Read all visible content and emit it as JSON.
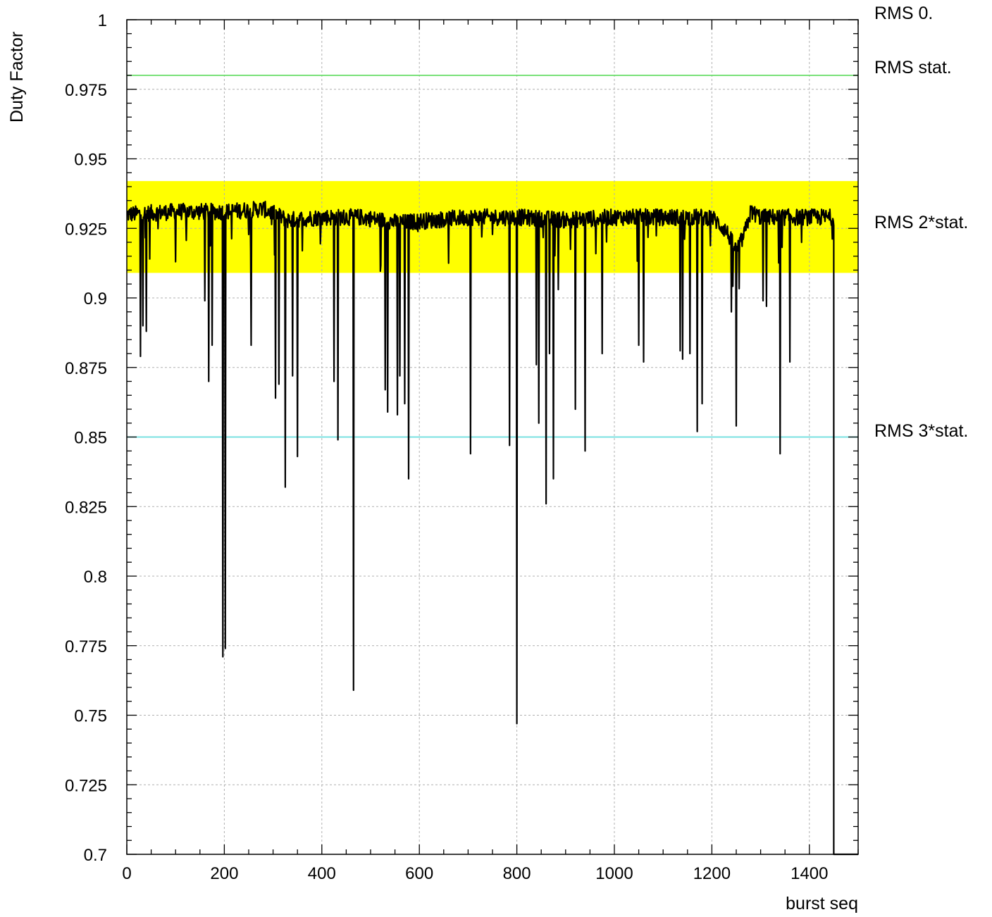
{
  "chart_data": {
    "type": "line",
    "xlabel": "burst seq",
    "ylabel": "Duty Factor",
    "xlim": [
      0,
      1500
    ],
    "ylim": [
      0.7,
      1.0
    ],
    "grid": true,
    "x_ticks": [
      0,
      200,
      400,
      600,
      800,
      1000,
      1200,
      1400
    ],
    "y_ticks": [
      "0.7",
      "0.725",
      "0.75",
      "0.775",
      "0.8",
      "0.825",
      "0.85",
      "0.875",
      "0.9",
      "0.925",
      "0.95",
      "0.975",
      "1"
    ],
    "band": {
      "label": "RMS 2*stat.",
      "y_min": 0.909,
      "y_max": 0.942,
      "color": "#ffff00"
    },
    "reference_lines": [
      {
        "label": "RMS 0.",
        "y": 1.0,
        "color": "#000000"
      },
      {
        "label": "RMS stat.",
        "y": 0.98,
        "color": "#66dd66"
      },
      {
        "label": "RMS 3*stat.",
        "y": 0.85,
        "color": "#66dddd"
      }
    ],
    "series": [
      {
        "baseline": [
          [
            0,
            0.93
          ],
          [
            100,
            0.931
          ],
          [
            200,
            0.931
          ],
          [
            280,
            0.932
          ],
          [
            330,
            0.928
          ],
          [
            400,
            0.929
          ],
          [
            480,
            0.929
          ],
          [
            560,
            0.927
          ],
          [
            700,
            0.929
          ],
          [
            800,
            0.929
          ],
          [
            900,
            0.928
          ],
          [
            1000,
            0.929
          ],
          [
            1100,
            0.929
          ],
          [
            1200,
            0.929
          ],
          [
            1230,
            0.924
          ],
          [
            1250,
            0.917
          ],
          [
            1265,
            0.922
          ],
          [
            1280,
            0.931
          ],
          [
            1300,
            0.929
          ],
          [
            1400,
            0.929
          ],
          [
            1450,
            0.929
          ]
        ],
        "dips": [
          [
            28,
            0.879
          ],
          [
            33,
            0.89
          ],
          [
            40,
            0.888
          ],
          [
            47,
            0.914
          ],
          [
            100,
            0.913
          ],
          [
            160,
            0.899
          ],
          [
            168,
            0.87
          ],
          [
            175,
            0.883
          ],
          [
            197,
            0.771
          ],
          [
            202,
            0.774
          ],
          [
            255,
            0.883
          ],
          [
            305,
            0.864
          ],
          [
            312,
            0.869
          ],
          [
            325,
            0.832
          ],
          [
            340,
            0.872
          ],
          [
            350,
            0.843
          ],
          [
            425,
            0.87
          ],
          [
            433,
            0.849
          ],
          [
            465,
            0.759
          ],
          [
            530,
            0.867
          ],
          [
            535,
            0.859
          ],
          [
            555,
            0.858
          ],
          [
            560,
            0.872
          ],
          [
            570,
            0.862
          ],
          [
            578,
            0.835
          ],
          [
            705,
            0.844
          ],
          [
            785,
            0.847
          ],
          [
            800,
            0.747
          ],
          [
            840,
            0.876
          ],
          [
            845,
            0.855
          ],
          [
            860,
            0.826
          ],
          [
            867,
            0.88
          ],
          [
            875,
            0.835
          ],
          [
            885,
            0.903
          ],
          [
            920,
            0.86
          ],
          [
            940,
            0.845
          ],
          [
            975,
            0.88
          ],
          [
            1050,
            0.883
          ],
          [
            1060,
            0.877
          ],
          [
            1135,
            0.881
          ],
          [
            1140,
            0.878
          ],
          [
            1155,
            0.88
          ],
          [
            1170,
            0.852
          ],
          [
            1180,
            0.862
          ],
          [
            1240,
            0.895
          ],
          [
            1250,
            0.854
          ],
          [
            1305,
            0.899
          ],
          [
            1312,
            0.897
          ],
          [
            1340,
            0.844
          ],
          [
            1360,
            0.877
          ]
        ],
        "end_step": {
          "x": 1450,
          "y": 0.7,
          "x_end": 1500
        }
      }
    ]
  }
}
